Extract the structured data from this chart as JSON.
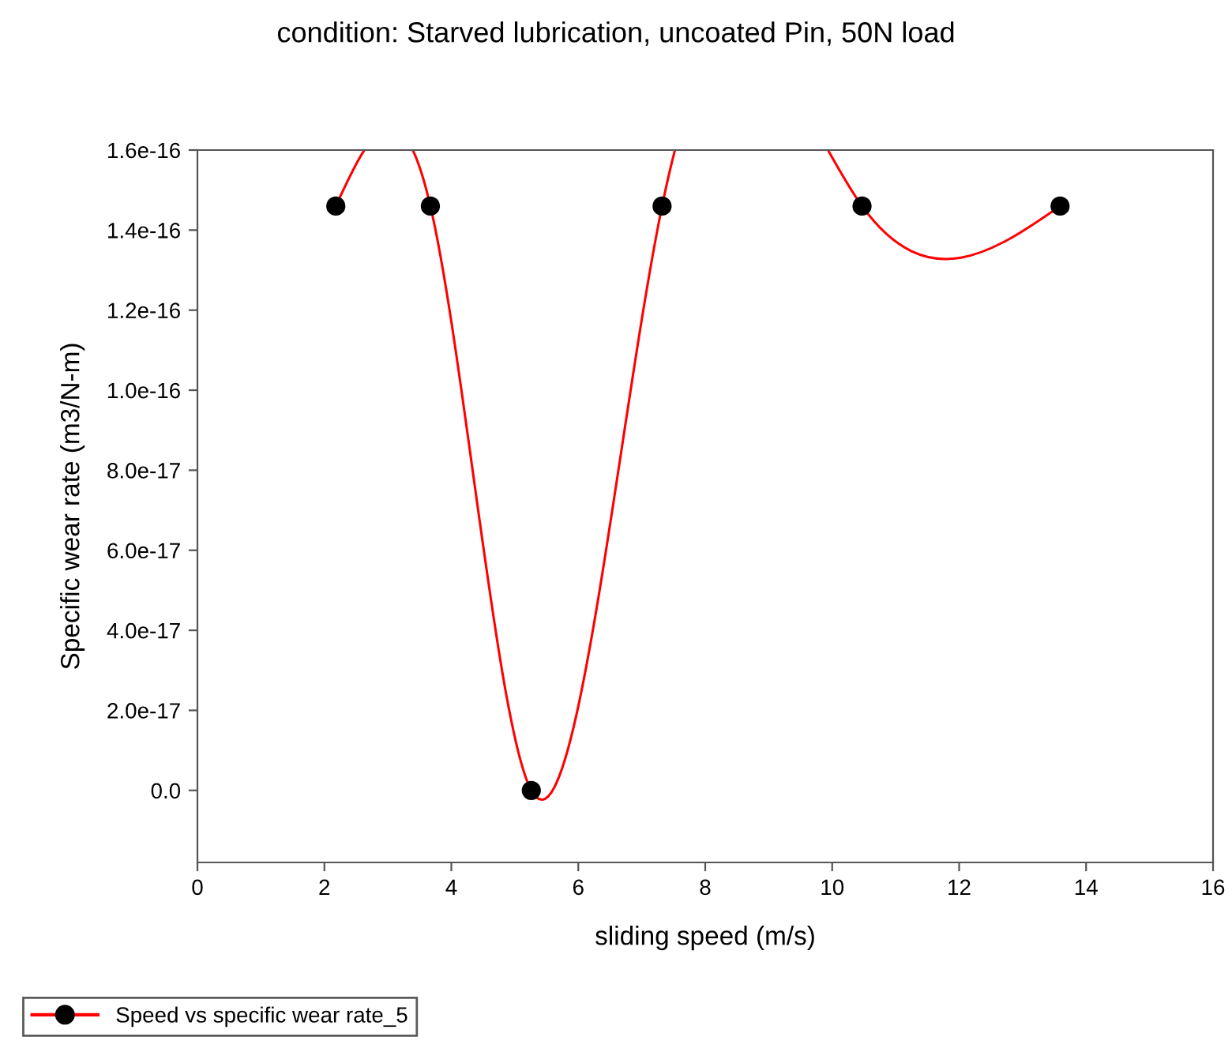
{
  "chart_data": {
    "type": "line",
    "title": "condition: Starved lubrication, uncoated Pin, 50N load",
    "xlabel": "sliding speed (m/s)",
    "ylabel": "Specific wear rate (m3/N-m)",
    "x": [
      2.18,
      3.67,
      5.26,
      7.32,
      10.47,
      13.59
    ],
    "series": [
      {
        "name": "Speed vs specific wear rate_5",
        "color": "#ff0000",
        "colors": [
          "#000000",
          "#000000",
          "#000000",
          "#000000",
          "#000000",
          "#000000"
        ],
        "values": [
          1.46e-16,
          1.46e-16,
          0.0,
          1.46e-16,
          1.46e-16,
          1.46e-16
        ]
      }
    ],
    "xlim": [
      0,
      16
    ],
    "xticks": [
      0,
      2,
      4,
      6,
      8,
      10,
      12,
      14,
      16
    ],
    "ylim": [
      -1.8e-17,
      1.6e-16
    ],
    "yticks": [
      {
        "value": 0.0,
        "label": "0.0"
      },
      {
        "value": 2e-17,
        "label": "2.0e-17"
      },
      {
        "value": 4e-17,
        "label": "4.0e-17"
      },
      {
        "value": 6e-17,
        "label": "6.0e-17"
      },
      {
        "value": 8e-17,
        "label": "8.0e-17"
      },
      {
        "value": 1e-16,
        "label": "1.0e-16"
      },
      {
        "value": 1.2e-16,
        "label": "1.2e-16"
      },
      {
        "value": 1.4e-16,
        "label": "1.4e-16"
      },
      {
        "value": 1.6e-16,
        "label": "1.6e-16"
      }
    ],
    "marker": "circle",
    "line_style": "solid",
    "grid": false,
    "legend": "bottom left"
  }
}
